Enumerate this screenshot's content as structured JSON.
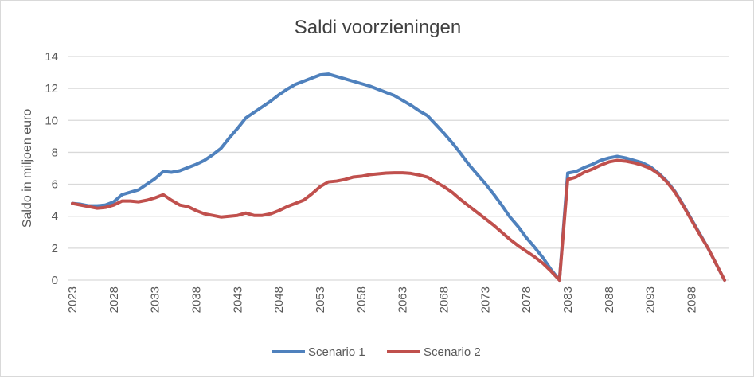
{
  "chart_data": {
    "type": "line",
    "title": "Saldi voorzieningen",
    "xlabel": "",
    "ylabel": "Saldo in miljoen euro",
    "ylim": [
      0,
      14
    ],
    "yticks": [
      "0",
      "2",
      "4",
      "6",
      "8",
      "10",
      "12",
      "14"
    ],
    "xticks": [
      "2023",
      "2028",
      "2033",
      "2038",
      "2043",
      "2048",
      "2053",
      "2058",
      "2063",
      "2068",
      "2073",
      "2078",
      "2083",
      "2088",
      "2093",
      "2098"
    ],
    "grid": true,
    "legend_position": "bottom",
    "x": [
      2023,
      2024,
      2025,
      2026,
      2027,
      2028,
      2029,
      2030,
      2031,
      2032,
      2033,
      2034,
      2035,
      2036,
      2037,
      2038,
      2039,
      2040,
      2041,
      2042,
      2043,
      2044,
      2045,
      2046,
      2047,
      2048,
      2049,
      2050,
      2051,
      2052,
      2053,
      2054,
      2055,
      2056,
      2057,
      2058,
      2059,
      2060,
      2061,
      2062,
      2063,
      2064,
      2065,
      2066,
      2067,
      2068,
      2069,
      2070,
      2071,
      2072,
      2073,
      2074,
      2075,
      2076,
      2077,
      2078,
      2079,
      2080,
      2081,
      2082,
      2083,
      2084,
      2085,
      2086,
      2087,
      2088,
      2089,
      2090,
      2091,
      2092,
      2093,
      2094,
      2095,
      2096,
      2097,
      2098,
      2099,
      2100,
      2101,
      2102
    ],
    "series": [
      {
        "name": "Scenario 1",
        "color": "#4f81bd",
        "values": [
          4.8,
          4.75,
          4.65,
          4.65,
          4.7,
          4.9,
          5.35,
          5.5,
          5.65,
          6.0,
          6.35,
          6.8,
          6.75,
          6.85,
          7.05,
          7.25,
          7.5,
          7.85,
          8.25,
          8.9,
          9.5,
          10.15,
          10.5,
          10.85,
          11.2,
          11.6,
          11.95,
          12.25,
          12.45,
          12.65,
          12.85,
          12.9,
          12.75,
          12.6,
          12.45,
          12.3,
          12.15,
          11.95,
          11.75,
          11.55,
          11.25,
          10.95,
          10.6,
          10.3,
          9.75,
          9.2,
          8.6,
          7.95,
          7.25,
          6.65,
          6.05,
          5.4,
          4.7,
          3.95,
          3.35,
          2.65,
          2.05,
          1.4,
          0.65,
          0,
          6.7,
          6.8,
          7.05,
          7.25,
          7.5,
          7.65,
          7.75,
          7.65,
          7.5,
          7.35,
          7.1,
          6.7,
          6.2,
          5.55,
          4.7,
          3.8,
          2.9,
          2.0,
          1.0,
          0
        ]
      },
      {
        "name": "Scenario 2",
        "color": "#c0504d",
        "values": [
          4.8,
          4.7,
          4.6,
          4.5,
          4.55,
          4.7,
          4.95,
          4.95,
          4.9,
          5.0,
          5.15,
          5.35,
          5.0,
          4.7,
          4.6,
          4.35,
          4.15,
          4.05,
          3.95,
          4.0,
          4.05,
          4.2,
          4.05,
          4.05,
          4.15,
          4.35,
          4.6,
          4.8,
          5.0,
          5.4,
          5.85,
          6.15,
          6.2,
          6.3,
          6.45,
          6.5,
          6.6,
          6.65,
          6.7,
          6.72,
          6.72,
          6.68,
          6.58,
          6.45,
          6.15,
          5.85,
          5.5,
          5.05,
          4.65,
          4.25,
          3.85,
          3.45,
          3.0,
          2.55,
          2.15,
          1.8,
          1.45,
          1.05,
          0.55,
          0,
          6.3,
          6.45,
          6.75,
          6.95,
          7.2,
          7.4,
          7.5,
          7.45,
          7.35,
          7.2,
          7.0,
          6.65,
          6.15,
          5.5,
          4.65,
          3.75,
          2.85,
          2.0,
          1.0,
          0
        ]
      }
    ]
  }
}
